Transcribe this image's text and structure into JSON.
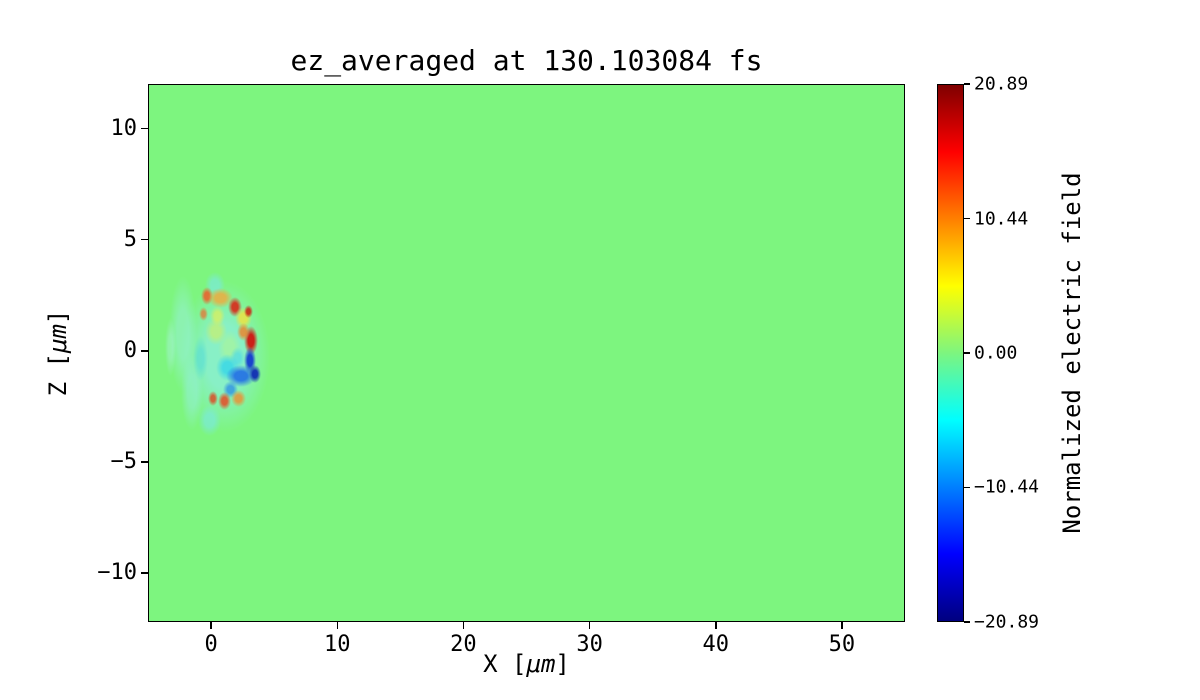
{
  "chart_data": {
    "type": "heatmap",
    "title": "ez_averaged at 130.103084 fs",
    "xlabel": "X [μm]",
    "xlabel_parts": {
      "pre": "X [",
      "italic": "μm",
      "post": "]"
    },
    "ylabel": "Z [μm]",
    "ylabel_parts": {
      "pre": "Z [",
      "italic": "μm",
      "post": "]"
    },
    "x_range": [
      -5,
      55
    ],
    "z_range": [
      -12.2,
      12.0
    ],
    "x_ticks": [
      {
        "value": 0,
        "label": "0"
      },
      {
        "value": 10,
        "label": "10"
      },
      {
        "value": 20,
        "label": "20"
      },
      {
        "value": 30,
        "label": "30"
      },
      {
        "value": 40,
        "label": "40"
      },
      {
        "value": 50,
        "label": "50"
      }
    ],
    "z_ticks": [
      {
        "value": 10,
        "label": "10"
      },
      {
        "value": 5,
        "label": "5"
      },
      {
        "value": 0,
        "label": "0"
      },
      {
        "value": -5,
        "label": "−5"
      },
      {
        "value": -10,
        "label": "−10"
      }
    ],
    "colormap": "jet",
    "colormap_stops": [
      {
        "pos": 0.0,
        "color": "#00007f"
      },
      {
        "pos": 0.125,
        "color": "#0000ff"
      },
      {
        "pos": 0.375,
        "color": "#00ffff"
      },
      {
        "pos": 0.5,
        "color": "#7df57f"
      },
      {
        "pos": 0.625,
        "color": "#ffff00"
      },
      {
        "pos": 0.875,
        "color": "#ff0000"
      },
      {
        "pos": 1.0,
        "color": "#7f0000"
      }
    ],
    "colorbar": {
      "label": "Normalized electric field",
      "vmin": -20.89,
      "vmax": 20.89,
      "ticks": [
        {
          "value": 20.89,
          "label": "20.89"
        },
        {
          "value": 10.44,
          "label": "10.44"
        },
        {
          "value": 0.0,
          "label": "0.00"
        },
        {
          "value": -10.44,
          "label": "−10.44"
        },
        {
          "value": -20.89,
          "label": "−20.89"
        }
      ]
    },
    "background_value": 0.0,
    "background_color": "#7df57f",
    "features": [
      {
        "x": 1.0,
        "z": -0.2,
        "rx": 3.6,
        "ry": 3.4,
        "value": -2,
        "color": "#8ceedd",
        "alpha": 0.75
      },
      {
        "x": -2.3,
        "z": 0.8,
        "rx": 1.1,
        "ry": 2.6,
        "value": -3,
        "color": "#9af0e2",
        "alpha": 0.5
      },
      {
        "x": -1.6,
        "z": -1.8,
        "rx": 0.9,
        "ry": 1.7,
        "value": -3,
        "color": "#96efe0",
        "alpha": 0.5
      },
      {
        "x": -3.3,
        "z": 0.2,
        "rx": 0.45,
        "ry": 1.3,
        "value": -2,
        "color": "#aef2e6",
        "alpha": 0.4
      },
      {
        "x": 0.2,
        "z": 3.0,
        "rx": 0.8,
        "ry": 0.6,
        "value": -4,
        "color": "#7ae8e8",
        "alpha": 0.6
      },
      {
        "x": -0.2,
        "z": -3.1,
        "rx": 0.9,
        "ry": 0.7,
        "value": -4,
        "color": "#7ae8e8",
        "alpha": 0.6
      },
      {
        "x": -0.4,
        "z": 2.5,
        "rx": 0.5,
        "ry": 0.4,
        "value": 12,
        "color": "#f05a28",
        "alpha": 0.85
      },
      {
        "x": 0.7,
        "z": 2.4,
        "rx": 1.0,
        "ry": 0.45,
        "value": 9,
        "color": "#f5a63a",
        "alpha": 0.8
      },
      {
        "x": 1.8,
        "z": 2.0,
        "rx": 0.55,
        "ry": 0.45,
        "value": 16,
        "color": "#d92818",
        "alpha": 0.9
      },
      {
        "x": 2.5,
        "z": 1.5,
        "rx": 0.7,
        "ry": 0.5,
        "value": 7,
        "color": "#f2e23c",
        "alpha": 0.8
      },
      {
        "x": 2.9,
        "z": 1.8,
        "rx": 0.35,
        "ry": 0.3,
        "value": 14,
        "color": "#cc1c10",
        "alpha": 0.85
      },
      {
        "x": 3.1,
        "z": 0.5,
        "rx": 0.55,
        "ry": 0.65,
        "value": 20,
        "color": "#cf1510",
        "alpha": 0.95
      },
      {
        "x": 2.5,
        "z": 0.9,
        "rx": 0.5,
        "ry": 0.4,
        "value": 10,
        "color": "#f08028",
        "alpha": 0.8
      },
      {
        "x": 0.3,
        "z": 0.9,
        "rx": 0.9,
        "ry": 0.6,
        "value": 4,
        "color": "#c9ef6d",
        "alpha": 0.7
      },
      {
        "x": 0.4,
        "z": 1.6,
        "rx": 0.6,
        "ry": 0.45,
        "value": 6,
        "color": "#e8ef50",
        "alpha": 0.65
      },
      {
        "x": -0.7,
        "z": 1.7,
        "rx": 0.35,
        "ry": 0.3,
        "value": 8,
        "color": "#ef6a2c",
        "alpha": 0.7
      },
      {
        "x": 1.4,
        "z": 0.2,
        "rx": 0.9,
        "ry": 0.8,
        "value": 1,
        "color": "#a5f4a0",
        "alpha": 0.8
      },
      {
        "x": 1.2,
        "z": -0.7,
        "rx": 0.9,
        "ry": 0.6,
        "value": -8,
        "color": "#2fd4ec",
        "alpha": 0.75
      },
      {
        "x": 2.0,
        "z": -0.3,
        "rx": 0.6,
        "ry": 0.5,
        "value": -6,
        "color": "#49d8e8",
        "alpha": 0.6
      },
      {
        "x": -0.9,
        "z": -0.3,
        "rx": 0.6,
        "ry": 1.0,
        "value": -5,
        "color": "#55dcd8",
        "alpha": 0.6
      },
      {
        "x": 3.0,
        "z": -0.4,
        "rx": 0.5,
        "ry": 0.6,
        "value": -18,
        "color": "#1134cf",
        "alpha": 0.92
      },
      {
        "x": 2.3,
        "z": -1.1,
        "rx": 1.2,
        "ry": 0.5,
        "value": -15,
        "color": "#1b66e8",
        "alpha": 0.85
      },
      {
        "x": 3.4,
        "z": -1.0,
        "rx": 0.5,
        "ry": 0.4,
        "value": -19,
        "color": "#0a22b4",
        "alpha": 0.9
      },
      {
        "x": 1.5,
        "z": -1.7,
        "rx": 0.6,
        "ry": 0.4,
        "value": -10,
        "color": "#2b8ae6",
        "alpha": 0.75
      },
      {
        "x": 1.0,
        "z": -2.2,
        "rx": 0.5,
        "ry": 0.4,
        "value": 13,
        "color": "#e64a24",
        "alpha": 0.85
      },
      {
        "x": 2.1,
        "z": -2.1,
        "rx": 0.6,
        "ry": 0.4,
        "value": 9,
        "color": "#f08c30",
        "alpha": 0.8
      },
      {
        "x": 0.1,
        "z": -2.1,
        "rx": 0.4,
        "ry": 0.35,
        "value": 11,
        "color": "#e0421e",
        "alpha": 0.8
      }
    ]
  }
}
